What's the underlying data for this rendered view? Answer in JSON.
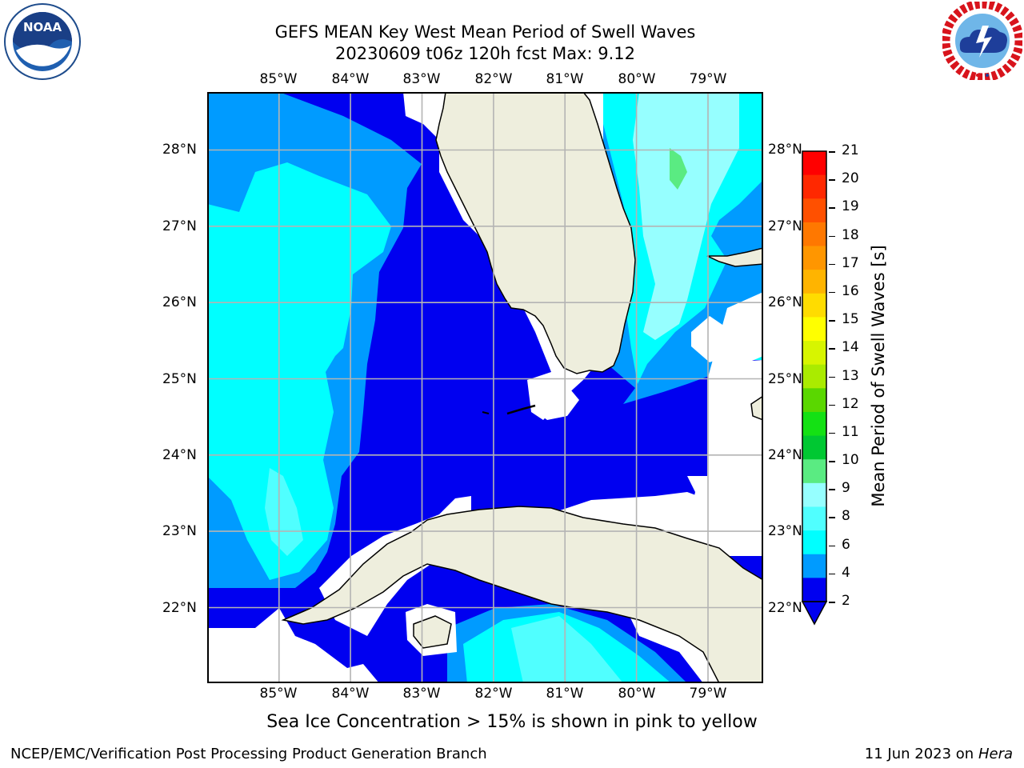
{
  "title": {
    "line1": "GEFS MEAN Key West Mean Period of Swell Waves",
    "line2": "20230609 t06z 120h fcst   Max: 9.12"
  },
  "logos": {
    "left": {
      "name": "noaa-logo",
      "text": "NOAA",
      "ring_text": "NATIONAL OCEANIC AND ATMOSPHERIC ADMINISTRATION · U.S. DEPARTMENT OF COMMERCE"
    },
    "right": {
      "name": "nws-logo",
      "ring_text": "NATIONAL WEATHER SERVICE"
    }
  },
  "map": {
    "longitude_labels": [
      "85°W",
      "84°W",
      "83°W",
      "82°W",
      "81°W",
      "80°W",
      "79°W"
    ],
    "latitude_labels": [
      "28°N",
      "27°N",
      "26°N",
      "25°N",
      "24°N",
      "23°N",
      "22°N"
    ],
    "lon_range": [
      -86.0,
      -78.25
    ],
    "lat_range": [
      21.0,
      28.75
    ],
    "colors": {
      "land": "#eeeedd",
      "no_data": "#ffffff",
      "grid": "#b4b4b4",
      "coast": "#000000"
    }
  },
  "colorbar": {
    "label": "Mean Period of Swell Waves [s]",
    "ticks": [
      "21",
      "20",
      "19",
      "18",
      "17",
      "16",
      "15",
      "14",
      "13",
      "12",
      "11",
      "10",
      "9",
      "8",
      "6",
      "4",
      "2"
    ],
    "colors_top_to_bottom": [
      "#ff0000",
      "#ff2800",
      "#ff5000",
      "#ff7800",
      "#ff9600",
      "#ffb400",
      "#ffdc00",
      "#ffff00",
      "#d7f500",
      "#aaeb00",
      "#5ad700",
      "#14e114",
      "#00c832",
      "#5aeb82",
      "#96ffff",
      "#50ffff",
      "#00ffff",
      "#009bff",
      "#0000f0"
    ],
    "extend": "min"
  },
  "notes": {
    "sea_ice": "Sea Ice Concentration > 15% is shown in pink to yellow"
  },
  "footer": {
    "left": "NCEP/EMC/Verification Post Processing Product Generation Branch",
    "right_date": "11 Jun 2023 on",
    "right_host": "Hera"
  }
}
